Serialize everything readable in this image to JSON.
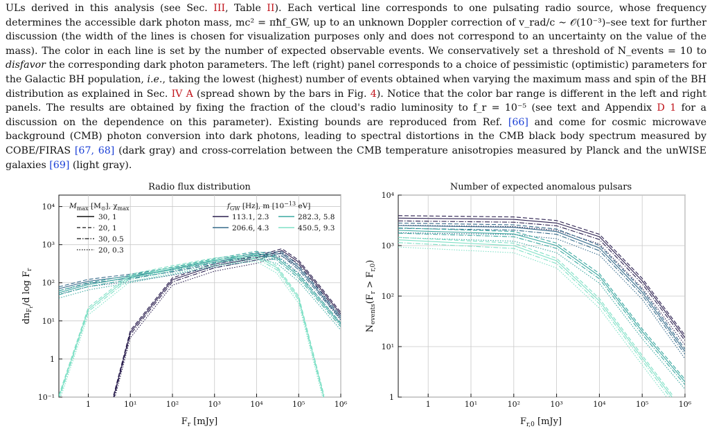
{
  "caption": {
    "line1": "ULs derived in this analysis (see Sec. ",
    "ref_sec3": "III",
    "line1b": ", Table ",
    "ref_tab2": "II",
    "line1c": "). Each vertical line corresponds to one pulsating radio source, whose frequency determines the accessible dark photon mass, mc² = πħf_GW, up to an unknown Doppler correction of v_rad/c ∼ 𝒪(10⁻³)–see text for further discussion (the width of the lines is chosen for visualization purposes only and does not correspond to an uncertainty on the value of the mass). The color in each line is set by the number of expected observable events. We conservatively set a threshold of N_events = 10 to ",
    "disfavor": "disfavor",
    "line2": " the corresponding dark photon parameters. The left (right) panel corresponds to a choice of pessimistic (optimistic) parameters for the Galactic BH population, ",
    "ie": "i.e.",
    "line3": ", taking the lowest (highest) number of events obtained when varying the maximum mass and spin of the BH distribution as explained in Sec. ",
    "ref_sec4a": "IV A",
    "line4": " (spread shown by the bars in Fig. ",
    "ref_fig4": "4",
    "line5": "). Notice that the color bar range is different in the left and right panels. The results are obtained by fixing the fraction of the cloud's radio luminosity to f_r = 10⁻⁵ (see text and Appendix ",
    "ref_d1": "D 1",
    "line6": " for a discussion on the dependence on this parameter). Existing bounds are reproduced from Ref. ",
    "cite66": "[66]",
    "line7": " and come for cosmic microwave background (CMB) photon conversion into dark photons, leading to spectral distortions in the CMB black body spectrum measured by COBE/FIRAS ",
    "cite6768": "[67, 68]",
    "line8": " (dark gray) and cross-correlation between the CMB temperature anisotropies measured by Planck and the unWISE galaxies ",
    "cite69": "[69]",
    "line9": " (light gray)."
  },
  "chart_data": [
    {
      "type": "line",
      "title": "Radio flux distribution",
      "xlabel": "F_r [mJy]",
      "ylabel": "dn_{F_r}/d log F_r",
      "xscale": "log",
      "yscale": "log",
      "xlim": [
        0.2,
        1000000
      ],
      "ylim": [
        0.1,
        20000
      ],
      "x_ticks": [
        "1",
        "10¹",
        "10²",
        "10³",
        "10⁴",
        "10⁵",
        "10⁶"
      ],
      "y_ticks": [
        "10⁻¹",
        "1",
        "10¹",
        "10²",
        "10³",
        "10⁴"
      ],
      "grid": true,
      "legend_left": {
        "title": "M_max [M⊙], χ_max",
        "entries": [
          {
            "label": "30, 1",
            "style": "solid"
          },
          {
            "label": "20, 1",
            "style": "dashed"
          },
          {
            "label": "30, 0.5",
            "style": "dashdot"
          },
          {
            "label": "20, 0.3",
            "style": "dotted"
          }
        ]
      },
      "legend_right": {
        "title": "f_GW [Hz], m [10⁻¹³ eV]",
        "entries": [
          {
            "label": "113.1, 2.3",
            "color": "#2b1f4f"
          },
          {
            "label": "206.6, 4.3",
            "color": "#356a8a"
          },
          {
            "label": "282.3, 5.8",
            "color": "#3aa8a0"
          },
          {
            "label": "450.5, 9.3",
            "color": "#7fe0c6"
          }
        ]
      },
      "series": [
        {
          "color": "#2b1f4f",
          "points": [
            [
              4,
              0.1
            ],
            [
              10,
              5
            ],
            [
              100,
              120
            ],
            [
              1000,
              280
            ],
            [
              10000,
              450
            ],
            [
              40000,
              700
            ],
            [
              100000,
              350
            ],
            [
              300000,
              80
            ],
            [
              1000000,
              15
            ]
          ]
        },
        {
          "color": "#356a8a",
          "points": [
            [
              0.2,
              70
            ],
            [
              1,
              110
            ],
            [
              10,
              150
            ],
            [
              100,
              220
            ],
            [
              1000,
              350
            ],
            [
              10000,
              550
            ],
            [
              40000,
              580
            ],
            [
              100000,
              250
            ],
            [
              1000000,
              12
            ]
          ]
        },
        {
          "color": "#3aa8a0",
          "points": [
            [
              0.2,
              55
            ],
            [
              1,
              90
            ],
            [
              10,
              140
            ],
            [
              100,
              230
            ],
            [
              1000,
              380
            ],
            [
              10000,
              600
            ],
            [
              30000,
              450
            ],
            [
              100000,
              150
            ],
            [
              1000000,
              8
            ]
          ]
        },
        {
          "color": "#7fe0c6",
          "points": [
            [
              0.2,
              0.1
            ],
            [
              1,
              20
            ],
            [
              10,
              150
            ],
            [
              100,
              250
            ],
            [
              1000,
              400
            ],
            [
              10000,
              500
            ],
            [
              30000,
              250
            ],
            [
              100000,
              40
            ],
            [
              400000,
              0.1
            ]
          ]
        }
      ]
    },
    {
      "type": "line",
      "title": "Number of expected anomalous pulsars",
      "xlabel": "F_{r,0} [mJy]",
      "ylabel": "N_events(F_r > F_{r,0})",
      "xscale": "log",
      "yscale": "log",
      "xlim": [
        0.2,
        1000000
      ],
      "ylim": [
        1,
        10000
      ],
      "x_ticks": [
        "1",
        "10¹",
        "10²",
        "10³",
        "10⁴",
        "10⁵",
        "10⁶"
      ],
      "y_ticks": [
        "1",
        "10¹",
        "10²",
        "10³",
        "10⁴"
      ],
      "grid": true,
      "series": [
        {
          "color": "#2b1f4f",
          "points": [
            [
              0.2,
              3500
            ],
            [
              100,
              3300
            ],
            [
              1000,
              2800
            ],
            [
              10000,
              1500
            ],
            [
              100000,
              200
            ],
            [
              1000000,
              15
            ]
          ]
        },
        {
          "color": "#356a8a",
          "points": [
            [
              0.2,
              2500
            ],
            [
              100,
              2300
            ],
            [
              1000,
              1900
            ],
            [
              10000,
              900
            ],
            [
              100000,
              120
            ],
            [
              1000000,
              8
            ]
          ]
        },
        {
          "color": "#3aa8a0",
          "points": [
            [
              0.2,
              2000
            ],
            [
              100,
              1700
            ],
            [
              1000,
              1000
            ],
            [
              10000,
              250
            ],
            [
              100000,
              20
            ],
            [
              1000000,
              2
            ]
          ]
        },
        {
          "color": "#7fe0c6",
          "points": [
            [
              0.2,
              1300
            ],
            [
              100,
              1000
            ],
            [
              1000,
              500
            ],
            [
              10000,
              80
            ],
            [
              100000,
              6
            ],
            [
              500000,
              1
            ]
          ]
        }
      ]
    }
  ]
}
